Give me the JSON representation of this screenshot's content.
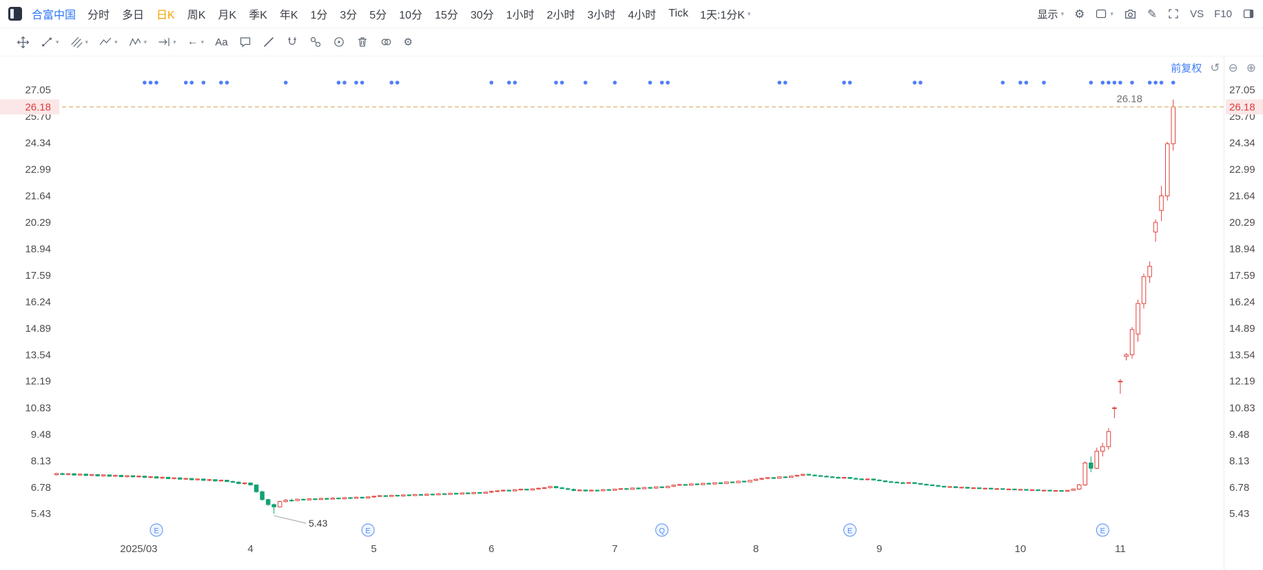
{
  "header": {
    "symbol": "合富中国",
    "timeframes": [
      "分时",
      "多日",
      "日K",
      "周K",
      "月K",
      "季K",
      "年K",
      "1分",
      "3分",
      "5分",
      "10分",
      "15分",
      "30分",
      "1小时",
      "2小时",
      "3小时",
      "4小时",
      "Tick"
    ],
    "selected": "日K",
    "compound": "1天:1分K",
    "display_label": "显示",
    "vs_label": "VS",
    "f10_label": "F10"
  },
  "tools": [
    "pan",
    "trendline",
    "pitchfork",
    "zigzag",
    "pattern",
    "measure",
    "back-arrow",
    "text",
    "comment",
    "draw-line",
    "magnet",
    "link",
    "marker-dot",
    "delete",
    "compare",
    "settings"
  ],
  "chart": {
    "adjust_label": "前复权",
    "price_line": {
      "value": 26.18,
      "label": "26.18"
    },
    "y_ticks": [
      "27.05",
      "25.70",
      "24.34",
      "22.99",
      "21.64",
      "20.29",
      "18.94",
      "17.59",
      "16.24",
      "14.89",
      "13.54",
      "12.19",
      "10.83",
      "9.48",
      "8.13",
      "6.78",
      "5.43"
    ],
    "x_labels": [
      {
        "label": "2025/03",
        "i": 14
      },
      {
        "label": "4",
        "i": 33
      },
      {
        "label": "5",
        "i": 54
      },
      {
        "label": "6",
        "i": 74
      },
      {
        "label": "7",
        "i": 95
      },
      {
        "label": "8",
        "i": 119
      },
      {
        "label": "9",
        "i": 140
      },
      {
        "label": "10",
        "i": 164
      },
      {
        "label": "11",
        "i": 181
      }
    ],
    "low_annotation": {
      "label": "5.43",
      "value": 5.43,
      "i": 37
    },
    "event_dot_indices": [
      15,
      16,
      17,
      22,
      23,
      25,
      28,
      29,
      39,
      48,
      49,
      51,
      52,
      57,
      58,
      74,
      77,
      78,
      85,
      86,
      90,
      95,
      101,
      103,
      104,
      123,
      124,
      134,
      135,
      146,
      147,
      161,
      164,
      165,
      168,
      176,
      178,
      179,
      180,
      181,
      183,
      186,
      187,
      188,
      190
    ],
    "bottom_markers": [
      {
        "t": "E",
        "i": 17
      },
      {
        "t": "E",
        "i": 53
      },
      {
        "t": "Q",
        "i": 103
      },
      {
        "t": "E",
        "i": 135
      },
      {
        "t": "E",
        "i": 178
      }
    ],
    "colors": {
      "up": "#e0403a",
      "down": "#13a272",
      "dot": "#4f7df9",
      "price_line": "#cfa257",
      "tag_bg": "#fbe7e7",
      "tag_text": "#e03a3a"
    }
  },
  "chart_data": {
    "type": "candlestick",
    "symbol": "合富中国",
    "timeframe": "日K",
    "ylim": [
      5.43,
      27.05
    ],
    "x_axis_months": [
      "2025/03",
      "4",
      "5",
      "6",
      "7",
      "8",
      "9",
      "10",
      "11"
    ],
    "current_price": 26.18,
    "period_low": 5.43,
    "ohlc": [
      [
        7.42,
        7.52,
        7.38,
        7.48
      ],
      [
        7.48,
        7.52,
        7.4,
        7.43
      ],
      [
        7.43,
        7.5,
        7.39,
        7.47
      ],
      [
        7.47,
        7.5,
        7.37,
        7.4
      ],
      [
        7.4,
        7.48,
        7.36,
        7.45
      ],
      [
        7.45,
        7.47,
        7.35,
        7.38
      ],
      [
        7.38,
        7.46,
        7.34,
        7.43
      ],
      [
        7.43,
        7.45,
        7.33,
        7.36
      ],
      [
        7.36,
        7.44,
        7.32,
        7.41
      ],
      [
        7.41,
        7.43,
        7.31,
        7.34
      ],
      [
        7.34,
        7.42,
        7.3,
        7.39
      ],
      [
        7.39,
        7.41,
        7.29,
        7.32
      ],
      [
        7.32,
        7.4,
        7.28,
        7.37
      ],
      [
        7.37,
        7.39,
        7.28,
        7.31
      ],
      [
        7.31,
        7.38,
        7.27,
        7.35
      ],
      [
        7.35,
        7.37,
        7.25,
        7.28
      ],
      [
        7.28,
        7.35,
        7.24,
        7.32
      ],
      [
        7.32,
        7.34,
        7.22,
        7.25
      ],
      [
        7.25,
        7.32,
        7.21,
        7.29
      ],
      [
        7.29,
        7.31,
        7.19,
        7.22
      ],
      [
        7.22,
        7.29,
        7.18,
        7.26
      ],
      [
        7.26,
        7.28,
        7.16,
        7.19
      ],
      [
        7.19,
        7.26,
        7.15,
        7.23
      ],
      [
        7.23,
        7.25,
        7.13,
        7.16
      ],
      [
        7.16,
        7.23,
        7.12,
        7.2
      ],
      [
        7.2,
        7.22,
        7.1,
        7.13
      ],
      [
        7.13,
        7.2,
        7.09,
        7.17
      ],
      [
        7.17,
        7.19,
        7.07,
        7.1
      ],
      [
        7.1,
        7.17,
        7.06,
        7.14
      ],
      [
        7.14,
        7.16,
        7.04,
        7.07
      ],
      [
        7.07,
        7.12,
        7.0,
        7.04
      ],
      [
        7.04,
        7.08,
        6.94,
        6.97
      ],
      [
        6.97,
        7.03,
        6.9,
        7.0
      ],
      [
        7.0,
        7.02,
        6.86,
        6.9
      ],
      [
        6.9,
        6.92,
        6.5,
        6.55
      ],
      [
        6.55,
        6.6,
        6.1,
        6.15
      ],
      [
        6.15,
        6.2,
        5.82,
        5.9
      ],
      [
        5.9,
        5.95,
        5.43,
        5.78
      ],
      [
        5.78,
        6.1,
        5.75,
        6.05
      ],
      [
        6.05,
        6.18,
        6.0,
        6.12
      ],
      [
        6.12,
        6.2,
        6.05,
        6.1
      ],
      [
        6.1,
        6.2,
        6.08,
        6.17
      ],
      [
        6.17,
        6.2,
        6.1,
        6.13
      ],
      [
        6.13,
        6.22,
        6.11,
        6.19
      ],
      [
        6.19,
        6.22,
        6.12,
        6.15
      ],
      [
        6.15,
        6.25,
        6.13,
        6.21
      ],
      [
        6.21,
        6.24,
        6.14,
        6.17
      ],
      [
        6.17,
        6.27,
        6.15,
        6.23
      ],
      [
        6.23,
        6.26,
        6.16,
        6.19
      ],
      [
        6.19,
        6.29,
        6.17,
        6.25
      ],
      [
        6.25,
        6.28,
        6.18,
        6.21
      ],
      [
        6.21,
        6.31,
        6.19,
        6.27
      ],
      [
        6.27,
        6.3,
        6.2,
        6.23
      ],
      [
        6.23,
        6.33,
        6.21,
        6.29
      ],
      [
        6.29,
        6.35,
        6.24,
        6.32
      ],
      [
        6.32,
        6.38,
        6.28,
        6.35
      ],
      [
        6.35,
        6.38,
        6.28,
        6.31
      ],
      [
        6.31,
        6.4,
        6.29,
        6.37
      ],
      [
        6.37,
        6.4,
        6.3,
        6.33
      ],
      [
        6.33,
        6.42,
        6.31,
        6.39
      ],
      [
        6.39,
        6.42,
        6.32,
        6.35
      ],
      [
        6.35,
        6.44,
        6.33,
        6.41
      ],
      [
        6.41,
        6.44,
        6.34,
        6.37
      ],
      [
        6.37,
        6.46,
        6.35,
        6.43
      ],
      [
        6.43,
        6.46,
        6.36,
        6.39
      ],
      [
        6.39,
        6.48,
        6.37,
        6.45
      ],
      [
        6.45,
        6.48,
        6.38,
        6.41
      ],
      [
        6.41,
        6.5,
        6.39,
        6.47
      ],
      [
        6.47,
        6.5,
        6.4,
        6.43
      ],
      [
        6.43,
        6.52,
        6.41,
        6.49
      ],
      [
        6.49,
        6.52,
        6.42,
        6.45
      ],
      [
        6.45,
        6.54,
        6.43,
        6.51
      ],
      [
        6.51,
        6.54,
        6.44,
        6.47
      ],
      [
        6.47,
        6.56,
        6.45,
        6.53
      ],
      [
        6.53,
        6.6,
        6.48,
        6.57
      ],
      [
        6.57,
        6.63,
        6.53,
        6.6
      ],
      [
        6.6,
        6.66,
        6.56,
        6.63
      ],
      [
        6.63,
        6.66,
        6.56,
        6.59
      ],
      [
        6.59,
        6.68,
        6.57,
        6.65
      ],
      [
        6.65,
        6.71,
        6.61,
        6.68
      ],
      [
        6.68,
        6.71,
        6.61,
        6.64
      ],
      [
        6.64,
        6.73,
        6.62,
        6.7
      ],
      [
        6.7,
        6.76,
        6.66,
        6.73
      ],
      [
        6.73,
        6.79,
        6.69,
        6.76
      ],
      [
        6.76,
        6.85,
        6.72,
        6.82
      ],
      [
        6.82,
        6.84,
        6.72,
        6.75
      ],
      [
        6.75,
        6.8,
        6.68,
        6.71
      ],
      [
        6.71,
        6.76,
        6.64,
        6.67
      ],
      [
        6.67,
        6.72,
        6.58,
        6.61
      ],
      [
        6.61,
        6.68,
        6.57,
        6.64
      ],
      [
        6.64,
        6.66,
        6.56,
        6.59
      ],
      [
        6.59,
        6.66,
        6.57,
        6.63
      ],
      [
        6.63,
        6.66,
        6.57,
        6.6
      ],
      [
        6.6,
        6.69,
        6.58,
        6.66
      ],
      [
        6.66,
        6.69,
        6.59,
        6.62
      ],
      [
        6.62,
        6.71,
        6.6,
        6.68
      ],
      [
        6.68,
        6.74,
        6.64,
        6.71
      ],
      [
        6.71,
        6.74,
        6.64,
        6.67
      ],
      [
        6.67,
        6.77,
        6.65,
        6.74
      ],
      [
        6.74,
        6.77,
        6.67,
        6.7
      ],
      [
        6.7,
        6.8,
        6.68,
        6.77
      ],
      [
        6.77,
        6.8,
        6.7,
        6.73
      ],
      [
        6.73,
        6.83,
        6.71,
        6.8
      ],
      [
        6.8,
        6.83,
        6.73,
        6.76
      ],
      [
        6.76,
        6.86,
        6.74,
        6.83
      ],
      [
        6.83,
        6.92,
        6.79,
        6.89
      ],
      [
        6.89,
        6.95,
        6.85,
        6.92
      ],
      [
        6.92,
        6.95,
        6.85,
        6.88
      ],
      [
        6.88,
        6.98,
        6.86,
        6.95
      ],
      [
        6.95,
        6.98,
        6.88,
        6.91
      ],
      [
        6.91,
        7.01,
        6.89,
        6.98
      ],
      [
        6.98,
        7.01,
        6.91,
        6.94
      ],
      [
        6.94,
        7.04,
        6.92,
        7.01
      ],
      [
        7.01,
        7.04,
        6.94,
        6.97
      ],
      [
        6.97,
        7.08,
        6.95,
        7.05
      ],
      [
        7.05,
        7.08,
        6.98,
        7.01
      ],
      [
        7.01,
        7.12,
        6.99,
        7.09
      ],
      [
        7.09,
        7.12,
        7.02,
        7.05
      ],
      [
        7.05,
        7.16,
        7.03,
        7.13
      ],
      [
        7.13,
        7.22,
        7.09,
        7.19
      ],
      [
        7.19,
        7.26,
        7.15,
        7.23
      ],
      [
        7.23,
        7.3,
        7.19,
        7.27
      ],
      [
        7.27,
        7.3,
        7.2,
        7.24
      ],
      [
        7.24,
        7.34,
        7.22,
        7.31
      ],
      [
        7.31,
        7.34,
        7.24,
        7.28
      ],
      [
        7.28,
        7.38,
        7.26,
        7.35
      ],
      [
        7.35,
        7.42,
        7.31,
        7.39
      ],
      [
        7.39,
        7.47,
        7.35,
        7.44
      ],
      [
        7.44,
        7.46,
        7.36,
        7.4
      ],
      [
        7.4,
        7.44,
        7.34,
        7.37
      ],
      [
        7.37,
        7.42,
        7.31,
        7.34
      ],
      [
        7.34,
        7.39,
        7.28,
        7.31
      ],
      [
        7.31,
        7.36,
        7.25,
        7.28
      ],
      [
        7.28,
        7.33,
        7.22,
        7.25
      ],
      [
        7.25,
        7.31,
        7.21,
        7.28
      ],
      [
        7.28,
        7.3,
        7.2,
        7.23
      ],
      [
        7.23,
        7.28,
        7.17,
        7.2
      ],
      [
        7.2,
        7.25,
        7.14,
        7.17
      ],
      [
        7.17,
        7.23,
        7.13,
        7.2
      ],
      [
        7.2,
        7.22,
        7.12,
        7.15
      ],
      [
        7.15,
        7.18,
        7.08,
        7.11
      ],
      [
        7.11,
        7.13,
        7.03,
        7.06
      ],
      [
        7.06,
        7.11,
        7.01,
        7.04
      ],
      [
        7.04,
        7.08,
        6.98,
        7.01
      ],
      [
        7.01,
        7.06,
        6.96,
        6.99
      ],
      [
        6.99,
        7.05,
        6.95,
        7.02
      ],
      [
        7.02,
        7.04,
        6.94,
        6.97
      ],
      [
        6.97,
        7.0,
        6.9,
        6.93
      ],
      [
        6.93,
        6.97,
        6.87,
        6.9
      ],
      [
        6.9,
        6.94,
        6.84,
        6.87
      ],
      [
        6.87,
        6.9,
        6.8,
        6.83
      ],
      [
        6.83,
        6.86,
        6.76,
        6.79
      ],
      [
        6.79,
        6.84,
        6.75,
        6.81
      ],
      [
        6.81,
        6.83,
        6.73,
        6.76
      ],
      [
        6.76,
        6.81,
        6.72,
        6.78
      ],
      [
        6.78,
        6.8,
        6.7,
        6.73
      ],
      [
        6.73,
        6.78,
        6.69,
        6.75
      ],
      [
        6.75,
        6.77,
        6.68,
        6.71
      ],
      [
        6.71,
        6.76,
        6.67,
        6.73
      ],
      [
        6.73,
        6.75,
        6.66,
        6.69
      ],
      [
        6.69,
        6.74,
        6.65,
        6.71
      ],
      [
        6.71,
        6.73,
        6.64,
        6.67
      ],
      [
        6.67,
        6.72,
        6.63,
        6.69
      ],
      [
        6.69,
        6.71,
        6.62,
        6.65
      ],
      [
        6.65,
        6.7,
        6.61,
        6.67
      ],
      [
        6.67,
        6.69,
        6.6,
        6.63
      ],
      [
        6.63,
        6.68,
        6.59,
        6.65
      ],
      [
        6.65,
        6.67,
        6.58,
        6.61
      ],
      [
        6.61,
        6.66,
        6.57,
        6.63
      ],
      [
        6.63,
        6.65,
        6.56,
        6.59
      ],
      [
        6.59,
        6.64,
        6.55,
        6.61
      ],
      [
        6.61,
        6.63,
        6.56,
        6.58
      ],
      [
        6.58,
        6.64,
        6.55,
        6.62
      ],
      [
        6.62,
        6.72,
        6.6,
        6.69
      ],
      [
        6.69,
        6.95,
        6.64,
        6.9
      ],
      [
        6.9,
        8.1,
        6.85,
        8.02
      ],
      [
        8.02,
        8.35,
        7.55,
        7.75
      ],
      [
        7.75,
        8.8,
        7.7,
        8.62
      ],
      [
        8.62,
        9.05,
        8.35,
        8.85
      ],
      [
        8.85,
        9.8,
        8.7,
        9.62
      ],
      [
        10.8,
        10.9,
        10.3,
        10.83
      ],
      [
        12.19,
        12.3,
        11.55,
        12.19
      ],
      [
        13.45,
        13.62,
        13.25,
        13.54
      ],
      [
        13.54,
        14.95,
        13.35,
        14.82
      ],
      [
        14.6,
        16.35,
        14.2,
        16.15
      ],
      [
        16.15,
        17.68,
        15.9,
        17.52
      ],
      [
        17.52,
        18.3,
        17.2,
        18.05
      ],
      [
        19.8,
        20.45,
        19.3,
        20.29
      ],
      [
        20.9,
        22.15,
        20.35,
        21.64
      ],
      [
        21.64,
        24.4,
        21.4,
        24.3
      ],
      [
        24.3,
        26.55,
        23.95,
        26.18
      ]
    ]
  }
}
